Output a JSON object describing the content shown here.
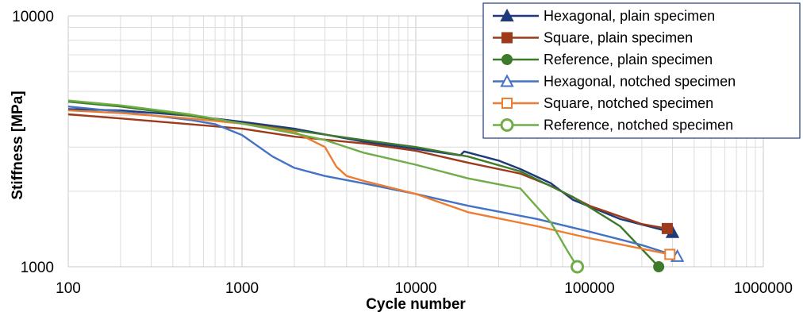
{
  "chart_data": {
    "type": "line",
    "title": "",
    "xlabel": "Cycle number",
    "ylabel": "Stiffness [MPa]",
    "x_scale": "log",
    "y_scale": "log",
    "xlim": [
      100,
      1000000
    ],
    "ylim": [
      1000,
      10000
    ],
    "x_ticks": [
      100,
      1000,
      10000,
      100000,
      1000000
    ],
    "x_tick_labels": [
      "100",
      "1000",
      "10000",
      "100000",
      "1000000"
    ],
    "y_ticks": [
      1000,
      10000
    ],
    "y_tick_labels": [
      "1000",
      "10000"
    ],
    "grid": true,
    "legend_position": "top-right",
    "series": [
      {
        "name": "Hexagonal, plain specimen",
        "color": "#1f3a7a",
        "marker": "triangle",
        "marker_fill": "filled",
        "x": [
          100,
          200,
          500,
          1000,
          2000,
          5000,
          10000,
          18000,
          19000,
          30000,
          40000,
          60000,
          80000,
          150000,
          300000
        ],
        "y": [
          4250,
          4200,
          4000,
          3780,
          3550,
          3150,
          2950,
          2780,
          2880,
          2650,
          2450,
          2150,
          1850,
          1550,
          1370
        ]
      },
      {
        "name": "Square, plain specimen",
        "color": "#9c3a1a",
        "marker": "square",
        "marker_fill": "filled",
        "x": [
          100,
          200,
          500,
          1000,
          2000,
          5000,
          10000,
          20000,
          40000,
          60000,
          100000,
          200000,
          280000
        ],
        "y": [
          4050,
          3900,
          3700,
          3550,
          3300,
          3100,
          2900,
          2600,
          2350,
          2100,
          1750,
          1480,
          1420
        ]
      },
      {
        "name": "Reference, plain specimen",
        "color": "#3d7a2a",
        "marker": "circle",
        "marker_fill": "filled",
        "x": [
          100,
          200,
          500,
          1000,
          2000,
          5000,
          10000,
          20000,
          40000,
          80000,
          150000,
          250000
        ],
        "y": [
          4550,
          4350,
          4000,
          3720,
          3500,
          3200,
          3000,
          2750,
          2400,
          1900,
          1450,
          1000
        ]
      },
      {
        "name": "Hexagonal, notched specimen",
        "color": "#4472c4",
        "marker": "triangle",
        "marker_fill": "open",
        "x": [
          100,
          200,
          500,
          700,
          1000,
          1500,
          2000,
          3000,
          5000,
          10000,
          20000,
          50000,
          100000,
          200000,
          320000
        ],
        "y": [
          4350,
          4150,
          3850,
          3700,
          3350,
          2750,
          2480,
          2300,
          2150,
          1950,
          1750,
          1550,
          1380,
          1220,
          1100
        ]
      },
      {
        "name": "Square, notched specimen",
        "color": "#ed7d31",
        "marker": "square",
        "marker_fill": "open",
        "x": [
          100,
          200,
          500,
          1000,
          2000,
          3000,
          3500,
          4000,
          5000,
          10000,
          20000,
          50000,
          100000,
          200000,
          290000
        ],
        "y": [
          4200,
          4100,
          3900,
          3720,
          3450,
          3000,
          2500,
          2300,
          2200,
          1950,
          1650,
          1450,
          1300,
          1180,
          1120
        ]
      },
      {
        "name": "Reference, notched specimen",
        "color": "#70ad47",
        "marker": "circle",
        "marker_fill": "open",
        "x": [
          100,
          200,
          500,
          1000,
          2000,
          3000,
          5000,
          10000,
          20000,
          40000,
          60000,
          75000,
          85000
        ],
        "y": [
          4600,
          4400,
          4050,
          3720,
          3400,
          3200,
          2850,
          2550,
          2250,
          2050,
          1500,
          1150,
          1000
        ]
      }
    ]
  }
}
